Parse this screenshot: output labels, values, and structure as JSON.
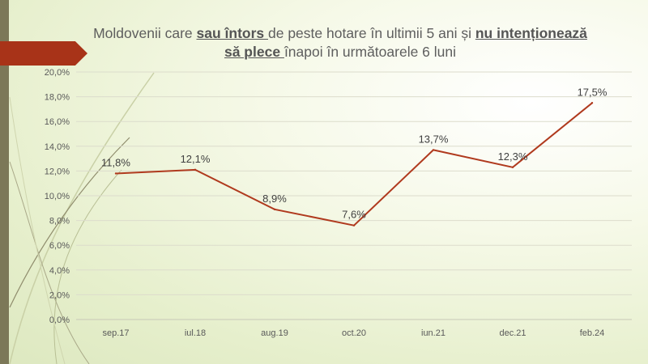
{
  "title": {
    "part1": "Moldovenii care ",
    "emph1": "sau întors ",
    "part2": "de peste hotare în ultimii 5 ani și ",
    "emph2": "nu intenționează să plece ",
    "part3": "înapoi în următoarele 6 luni"
  },
  "colors": {
    "line": "#b03a1e",
    "arrow": "#a83318",
    "sidebar": "#7c7858"
  },
  "chart_data": {
    "type": "line",
    "categories": [
      "sep.17",
      "iul.18",
      "aug.19",
      "oct.20",
      "iun.21",
      "dec.21",
      "feb.24"
    ],
    "series": [
      {
        "values": [
          11.8,
          12.1,
          8.9,
          7.6,
          13.7,
          12.3,
          17.5
        ],
        "labels": [
          "11,8%",
          "12,1%",
          "8,9%",
          "7,6%",
          "13,7%",
          "12,3%",
          "17,5%"
        ]
      }
    ],
    "y_ticks": [
      "0,0%",
      "2,0%",
      "4,0%",
      "6,0%",
      "8,0%",
      "10,0%",
      "12,0%",
      "14,0%",
      "16,0%",
      "18,0%",
      "20,0%"
    ],
    "ylim": [
      0,
      20
    ],
    "grid": true,
    "legend": "none"
  }
}
